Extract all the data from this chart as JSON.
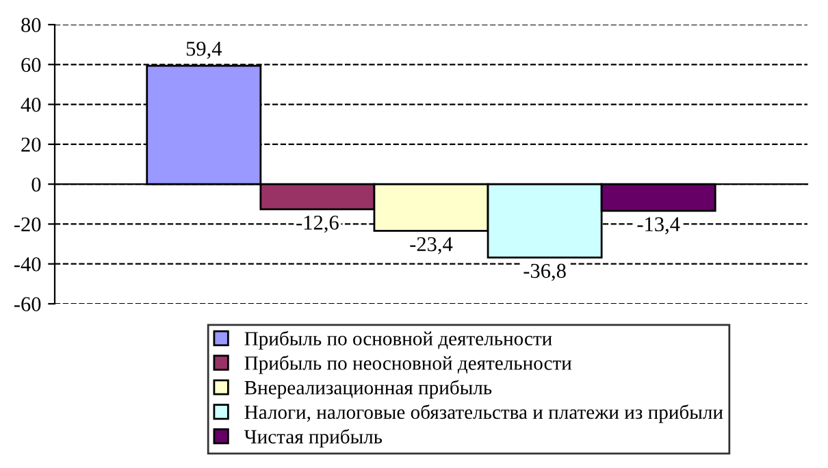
{
  "chart_data": {
    "type": "bar",
    "categories": [
      null
    ],
    "series": [
      {
        "name": "Прибыль по основной деятельности",
        "color": "#9999ff",
        "values": [
          59.4
        ],
        "value_labels": [
          "59,4"
        ]
      },
      {
        "name": "Прибыль по неосновной деятельности",
        "color": "#993366",
        "values": [
          -12.6
        ],
        "value_labels": [
          "-12,6"
        ]
      },
      {
        "name": "Внереализационная прибыль",
        "color": "#ffffcc",
        "values": [
          -23.4
        ],
        "value_labels": [
          "-23,4"
        ]
      },
      {
        "name": "Налоги, налоговые обязательства и платежи из прибыли",
        "color": "#ccffff",
        "values": [
          -36.8
        ],
        "value_labels": [
          "-36,8"
        ]
      },
      {
        "name": "Чистая прибыль",
        "color": "#660066",
        "values": [
          -13.4
        ],
        "value_labels": [
          "-13,4"
        ]
      }
    ],
    "ylim": [
      -60,
      80
    ],
    "yticks": [
      -60,
      -40,
      -20,
      0,
      20,
      40,
      60,
      80
    ],
    "grid": "y",
    "legend": "bottom",
    "tick_labels": "y",
    "line_style": "dashed"
  }
}
